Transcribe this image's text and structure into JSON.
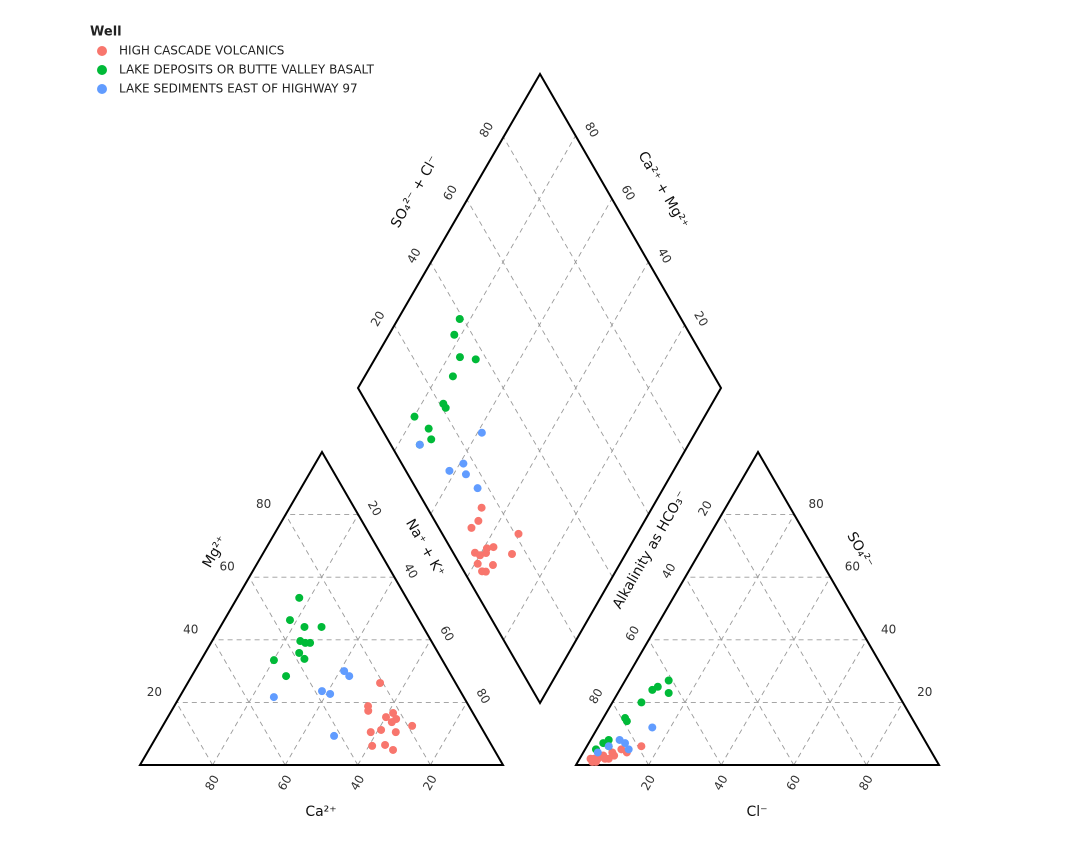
{
  "chart_data": {
    "type": "piper",
    "legend_title": "Well",
    "legend": "upper left",
    "grid": true,
    "ticks": [
      20,
      40,
      60,
      80
    ],
    "labels": {
      "ca": "Ca²⁺",
      "mg": "Mg²⁺",
      "nak": "Na⁺ + K⁺",
      "cl": "Cl⁻",
      "so4": "SO₄²⁻",
      "hco3": "Alkalinity as HCO₃⁻",
      "so4cl": "SO₄²⁻ + Cl⁻",
      "camg": "Ca²⁺ + Mg²⁺"
    },
    "series": [
      {
        "name": "HIGH CASCADE VOLCANICS",
        "color": "#f8766d",
        "Ca": [
          20.8,
          27.8,
          28.5,
          22.0,
          24.6,
          22.1,
          23.8,
          18.8,
          28.0,
          31.2,
          24.3,
          29.3,
          33.0,
          27.9
        ],
        "Mg": [
          26.2,
          18.8,
          17.3,
          16.6,
          15.3,
          14.7,
          13.7,
          12.5,
          11.2,
          10.5,
          10.5,
          6.4,
          6.1,
          4.8
        ],
        "Cl": [
          10,
          6,
          8,
          7,
          5,
          4,
          9,
          12,
          3,
          5,
          6,
          4,
          8,
          15
        ],
        "SO4": [
          5,
          3,
          4,
          2,
          2,
          1,
          3,
          4,
          2,
          1,
          3,
          2,
          2,
          6
        ]
      },
      {
        "name": "LAKE DEPOSITS OR BUTTE VALLEY BASALT",
        "color": "#00ba38",
        "Ca": [
          29.5,
          35.6,
          32.7,
          28.0,
          36.1,
          35.0,
          33.7,
          38.3,
          46.4,
          37.8,
          45.6
        ],
        "Mg": [
          53.4,
          46.3,
          44.1,
          44.1,
          39.6,
          39.0,
          39.0,
          35.8,
          33.5,
          33.9,
          28.4
        ],
        "Cl": [
          12,
          10,
          9,
          14,
          8,
          6,
          7,
          5,
          4,
          6,
          3
        ],
        "SO4": [
          27,
          25,
          24,
          23,
          20,
          15,
          14,
          8,
          7,
          6,
          5
        ]
      },
      {
        "name": "LAKE SEDIMENTS EAST OF HIGHWAY 97",
        "color": "#619cff",
        "Ca": [
          28.8,
          28.2,
          38.1,
          36.3,
          52.3,
          41.9
        ],
        "Mg": [
          30.0,
          28.4,
          23.6,
          22.7,
          21.7,
          9.3
        ],
        "Cl": [
          15,
          8,
          6,
          10,
          4,
          12
        ],
        "SO4": [
          12,
          8,
          6,
          7,
          4,
          5
        ]
      }
    ]
  }
}
